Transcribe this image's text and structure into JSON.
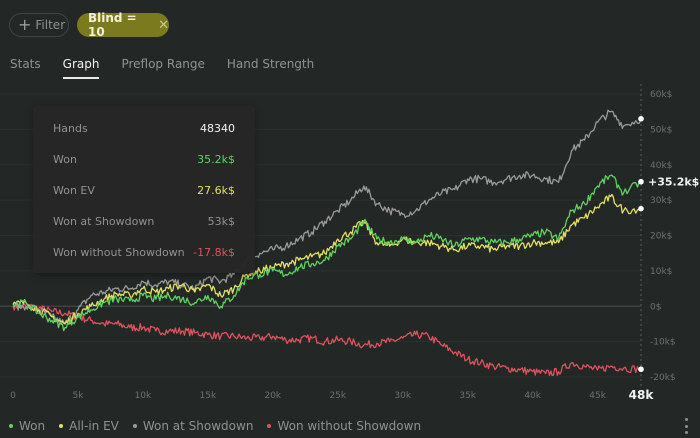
{
  "toolbar": {
    "filter_label": "Filter",
    "active_filter_label": "Blind = 10"
  },
  "tabs": [
    {
      "label": "Stats",
      "active": false
    },
    {
      "label": "Graph",
      "active": true
    },
    {
      "label": "Preflop Range",
      "active": false
    },
    {
      "label": "Hand Strength",
      "active": false
    }
  ],
  "tooltip": {
    "rows": [
      {
        "label": "Hands",
        "value": "48340",
        "color": "#f2f2f2"
      },
      {
        "label": "Won",
        "value": "35.2k$",
        "color": "#5fd35f"
      },
      {
        "label": "Won EV",
        "value": "27.6k$",
        "color": "#e3e060"
      },
      {
        "label": "Won at Showdown",
        "value": "53k$",
        "color": "#8e9391"
      },
      {
        "label": "Won without Showdown",
        "value": "-17.8k$",
        "color": "#e0525e"
      }
    ]
  },
  "legend": [
    {
      "label": "Won",
      "color": "#5fd35f"
    },
    {
      "label": "All-in EV",
      "color": "#e3e060"
    },
    {
      "label": "Won at Showdown",
      "color": "#9a9a9a"
    },
    {
      "label": "Won without Showdown",
      "color": "#e0525e"
    }
  ],
  "end_label": "+35.2k$",
  "chart_data": {
    "type": "line",
    "title": "",
    "xlabel": "Hands",
    "ylabel": "$",
    "xlim": [
      0,
      48340
    ],
    "ylim": [
      -20000,
      60000
    ],
    "grid": true,
    "legend_position": "bottom-left",
    "x_tick_labels": [
      "0",
      "5k",
      "10k",
      "15k",
      "20k",
      "25k",
      "30k",
      "35k",
      "40k",
      "45k"
    ],
    "x_tick_values": [
      0,
      5000,
      10000,
      15000,
      20000,
      25000,
      30000,
      35000,
      40000,
      45000
    ],
    "x_end_label": "48k",
    "y_tick_labels": [
      "60k$",
      "50k$",
      "40k$",
      "30k$",
      "20k$",
      "10k$",
      "0$",
      "-10k$",
      "-20k$"
    ],
    "y_tick_values": [
      60000,
      50000,
      40000,
      30000,
      20000,
      10000,
      0,
      -10000,
      -20000
    ],
    "x": [
      0,
      1000,
      2000,
      3000,
      4000,
      5000,
      6000,
      7000,
      8000,
      9000,
      10000,
      11000,
      12000,
      13000,
      14000,
      15000,
      16000,
      17000,
      18000,
      19000,
      20000,
      21000,
      22000,
      23000,
      24000,
      25000,
      26000,
      27000,
      28000,
      29000,
      30000,
      31000,
      32000,
      33000,
      34000,
      35000,
      36000,
      37000,
      38000,
      39000,
      40000,
      41000,
      42000,
      43000,
      44000,
      45000,
      46000,
      47000,
      48340
    ],
    "series": [
      {
        "name": "Won",
        "color": "#5fd35f",
        "values": [
          500,
          1000,
          -2000,
          -4000,
          -6000,
          -3000,
          -1000,
          1000,
          2000,
          1500,
          3000,
          2000,
          3000,
          2000,
          1000,
          3000,
          0,
          3000,
          8000,
          9000,
          10000,
          9000,
          11000,
          12000,
          13000,
          17000,
          19000,
          24000,
          19000,
          18000,
          19000,
          18000,
          20000,
          19000,
          17000,
          19000,
          19000,
          18000,
          18000,
          19000,
          20000,
          21000,
          19000,
          27000,
          29000,
          34000,
          37000,
          32000,
          35200
        ]
      },
      {
        "name": "All-in EV",
        "color": "#e3e060",
        "values": [
          500,
          1000,
          -1000,
          -3000,
          -5000,
          -2000,
          0,
          2000,
          3500,
          3000,
          5000,
          4000,
          5000,
          6000,
          4000,
          6000,
          3000,
          5000,
          9000,
          10000,
          11000,
          12000,
          13000,
          14000,
          15000,
          19000,
          21000,
          24000,
          18000,
          17000,
          19000,
          18000,
          18000,
          17000,
          16000,
          17000,
          17000,
          16000,
          17000,
          17000,
          18000,
          18000,
          18000,
          23000,
          25000,
          28000,
          31000,
          27000,
          27600
        ]
      },
      {
        "name": "Won at Showdown",
        "color": "#9a9a9a",
        "values": [
          0,
          0,
          -1000,
          -3000,
          -5000,
          -1000,
          3000,
          4000,
          5000,
          5000,
          7000,
          6000,
          7000,
          6000,
          5000,
          8000,
          7000,
          9000,
          13000,
          15000,
          16000,
          17000,
          19000,
          21000,
          24000,
          27000,
          30000,
          34000,
          29000,
          27000,
          26000,
          27000,
          30000,
          32000,
          33000,
          36000,
          36000,
          35000,
          36000,
          37000,
          37000,
          36000,
          35000,
          44000,
          47000,
          52000,
          55000,
          51000,
          53000
        ]
      },
      {
        "name": "Won without Showdown",
        "color": "#e0525e",
        "values": [
          0,
          0,
          -500,
          -1500,
          -2000,
          -3000,
          -4000,
          -5000,
          -5000,
          -6000,
          -6000,
          -7000,
          -7000,
          -7000,
          -7500,
          -8000,
          -8500,
          -8500,
          -9000,
          -9000,
          -8500,
          -9500,
          -9500,
          -9000,
          -10000,
          -9500,
          -10000,
          -11000,
          -10500,
          -10000,
          -9000,
          -8000,
          -8500,
          -11000,
          -13000,
          -15000,
          -16000,
          -17000,
          -17500,
          -18000,
          -18500,
          -19000,
          -18500,
          -16000,
          -17000,
          -18000,
          -17000,
          -17500,
          -17800
        ]
      }
    ]
  }
}
